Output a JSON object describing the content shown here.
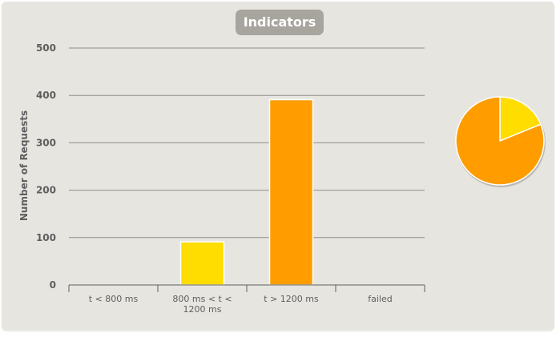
{
  "chart_data": [
    {
      "type": "bar",
      "title": "Indicators",
      "ylabel": "Number of Requests",
      "xlabel": "",
      "ylim": [
        0,
        500
      ],
      "yticks": [
        0,
        100,
        200,
        300,
        400,
        500
      ],
      "grid": true,
      "categories": [
        "t < 800 ms",
        "800 ms < t < 1200 ms",
        "t > 1200 ms",
        "failed"
      ],
      "category_lines": [
        [
          "t < 800 ms"
        ],
        [
          "800 ms < t <",
          "1200 ms"
        ],
        [
          "t > 1200 ms"
        ],
        [
          "failed"
        ]
      ],
      "values": [
        0,
        91,
        391,
        0
      ],
      "colors": [
        "#4caf50",
        "#ffdd00",
        "#ff9d00",
        "#f15b4f"
      ]
    },
    {
      "type": "pie",
      "slices": [
        {
          "value": 91,
          "color": "#ffdd00"
        },
        {
          "value": 391,
          "color": "#ff9d00"
        }
      ]
    }
  ]
}
